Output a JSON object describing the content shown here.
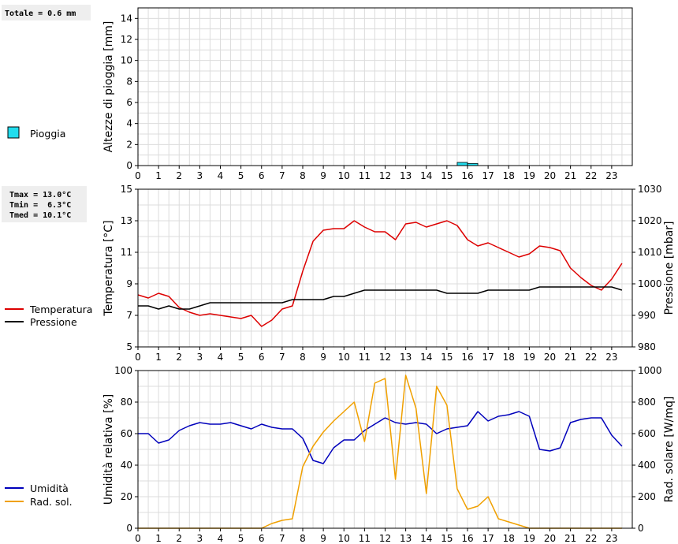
{
  "stats": {
    "rain_total": "Totale = 0.6 mm",
    "tmax": "Tmax = 13.0°C",
    "tmin": "Tmin =  6.3°C",
    "tmed": "Tmed = 10.1°C"
  },
  "colors": {
    "rain_fill": "#22ddee",
    "temperature": "#dd0000",
    "pressure": "#000000",
    "humidity": "#0000bb",
    "radiation": "#f0a000",
    "grid": "#dcdcdc",
    "stat_box": "#eeeeee"
  },
  "chart_data": [
    {
      "type": "bar",
      "ylabel": "Altezze di pioggia [mm]",
      "ylim": [
        0,
        15
      ],
      "yticks": [
        0,
        2,
        4,
        6,
        8,
        10,
        12,
        14
      ],
      "xticks": [
        "0",
        "1",
        "2",
        "3",
        "4",
        "5",
        "6",
        "7",
        "8",
        "9",
        "10",
        "11",
        "12",
        "13",
        "14",
        "15",
        "16",
        "17",
        "18",
        "19",
        "20",
        "21",
        "22",
        "23"
      ],
      "legend": [
        {
          "label": "Pioggia",
          "color": "#22ddee"
        }
      ],
      "bars": [
        {
          "x": 15.5,
          "value": 0.3
        },
        {
          "x": 16.0,
          "value": 0.2
        }
      ]
    },
    {
      "type": "line",
      "ylabel": "Temperatura [°C]",
      "ylabel_right": "Pressione [mbar]",
      "ylim": [
        5,
        15
      ],
      "ylim_right": [
        980,
        1030
      ],
      "yticks": [
        5,
        7,
        9,
        11,
        13,
        15
      ],
      "yticks_right": [
        980,
        990,
        1000,
        1010,
        1020,
        1030
      ],
      "xticks": [
        "0",
        "1",
        "2",
        "3",
        "4",
        "5",
        "6",
        "7",
        "8",
        "9",
        "10",
        "11",
        "12",
        "13",
        "14",
        "15",
        "16",
        "17",
        "18",
        "19",
        "20",
        "21",
        "22",
        "23"
      ],
      "legend": [
        {
          "label": "Temperatura",
          "color": "#dd0000"
        },
        {
          "label": "Pressione",
          "color": "#000000"
        }
      ],
      "series": [
        {
          "name": "Temperatura",
          "axis": "left",
          "color": "#dd0000",
          "x": [
            0,
            0.5,
            1,
            1.5,
            2,
            2.5,
            3,
            3.5,
            4,
            4.5,
            5,
            5.5,
            6,
            6.5,
            7,
            7.5,
            8,
            8.5,
            9,
            9.5,
            10,
            10.5,
            11,
            11.5,
            12,
            12.5,
            13,
            13.5,
            14,
            14.5,
            15,
            15.5,
            16,
            16.5,
            17,
            17.5,
            18,
            18.5,
            19,
            19.5,
            20,
            20.5,
            21,
            21.5,
            22,
            22.5,
            23,
            23.5
          ],
          "values": [
            8.3,
            8.1,
            8.4,
            8.2,
            7.5,
            7.2,
            7.0,
            7.1,
            7.0,
            6.9,
            6.8,
            7.0,
            6.3,
            6.7,
            7.4,
            7.6,
            9.8,
            11.7,
            12.4,
            12.5,
            12.5,
            13.0,
            12.6,
            12.3,
            12.3,
            11.8,
            12.8,
            12.9,
            12.6,
            12.8,
            13.0,
            12.7,
            11.8,
            11.4,
            11.6,
            11.3,
            11.0,
            10.7,
            10.9,
            11.4,
            11.3,
            11.1,
            10.0,
            9.4,
            8.9,
            8.6,
            9.3,
            10.3
          ]
        },
        {
          "name": "Pressione",
          "axis": "right",
          "color": "#000000",
          "x": [
            0,
            0.5,
            1,
            1.5,
            2,
            2.5,
            3,
            3.5,
            4,
            4.5,
            5,
            5.5,
            6,
            6.5,
            7,
            7.5,
            8,
            8.5,
            9,
            9.5,
            10,
            10.5,
            11,
            11.5,
            12,
            12.5,
            13,
            13.5,
            14,
            14.5,
            15,
            15.5,
            16,
            16.5,
            17,
            17.5,
            18,
            18.5,
            19,
            19.5,
            20,
            20.5,
            21,
            21.5,
            22,
            22.5,
            23,
            23.5
          ],
          "values": [
            993,
            993,
            992,
            993,
            992,
            992,
            993,
            994,
            994,
            994,
            994,
            994,
            994,
            994,
            994,
            995,
            995,
            995,
            995,
            996,
            996,
            997,
            998,
            998,
            998,
            998,
            998,
            998,
            998,
            998,
            997,
            997,
            997,
            997,
            998,
            998,
            998,
            998,
            998,
            999,
            999,
            999,
            999,
            999,
            999,
            999,
            999,
            998
          ]
        }
      ]
    },
    {
      "type": "line",
      "ylabel": "Umidità relativa [%]",
      "ylabel_right": "Rad. solare [W/mq]",
      "ylim": [
        0,
        100
      ],
      "ylim_right": [
        0,
        1000
      ],
      "yticks": [
        0,
        20,
        40,
        60,
        80,
        100
      ],
      "yticks_right": [
        0,
        200,
        400,
        600,
        800,
        1000
      ],
      "xticks": [
        "0",
        "1",
        "2",
        "3",
        "4",
        "5",
        "6",
        "7",
        "8",
        "9",
        "10",
        "11",
        "12",
        "13",
        "14",
        "15",
        "16",
        "17",
        "18",
        "19",
        "20",
        "21",
        "22",
        "23"
      ],
      "legend": [
        {
          "label": "Umidità",
          "color": "#0000bb"
        },
        {
          "label": "Rad. sol.",
          "color": "#f0a000"
        }
      ],
      "series": [
        {
          "name": "Umidità",
          "axis": "left",
          "color": "#0000bb",
          "x": [
            0,
            0.5,
            1,
            1.5,
            2,
            2.5,
            3,
            3.5,
            4,
            4.5,
            5,
            5.5,
            6,
            6.5,
            7,
            7.5,
            8,
            8.5,
            9,
            9.5,
            10,
            10.5,
            11,
            11.5,
            12,
            12.5,
            13,
            13.5,
            14,
            14.5,
            15,
            15.5,
            16,
            16.5,
            17,
            17.5,
            18,
            18.5,
            19,
            19.5,
            20,
            20.5,
            21,
            21.5,
            22,
            22.5,
            23,
            23.5
          ],
          "values": [
            60,
            60,
            54,
            56,
            62,
            65,
            67,
            66,
            66,
            67,
            65,
            63,
            66,
            64,
            63,
            63,
            57,
            43,
            41,
            51,
            56,
            56,
            62,
            66,
            70,
            67,
            66,
            67,
            66,
            60,
            63,
            64,
            65,
            74,
            68,
            71,
            72,
            74,
            71,
            50,
            49,
            51,
            67,
            69,
            70,
            70,
            59,
            52
          ]
        },
        {
          "name": "Rad. sol.",
          "axis": "right",
          "color": "#f0a000",
          "x": [
            0,
            0.5,
            1,
            1.5,
            2,
            2.5,
            3,
            3.5,
            4,
            4.5,
            5,
            5.5,
            6,
            6.5,
            7,
            7.5,
            8,
            8.5,
            9,
            9.5,
            10,
            10.5,
            11,
            11.5,
            12,
            12.5,
            13,
            13.5,
            14,
            14.5,
            15,
            15.5,
            16,
            16.5,
            17,
            17.5,
            18,
            18.5,
            19,
            19.5,
            20,
            20.5,
            21,
            21.5,
            22,
            22.5,
            23,
            23.5
          ],
          "values": [
            0,
            0,
            0,
            0,
            0,
            0,
            0,
            0,
            0,
            0,
            0,
            0,
            0,
            30,
            50,
            60,
            390,
            520,
            610,
            680,
            740,
            800,
            550,
            920,
            950,
            310,
            970,
            760,
            220,
            900,
            780,
            250,
            120,
            140,
            200,
            60,
            40,
            20,
            0,
            0,
            0,
            0,
            0,
            0,
            0,
            0,
            0,
            0
          ]
        }
      ]
    }
  ]
}
